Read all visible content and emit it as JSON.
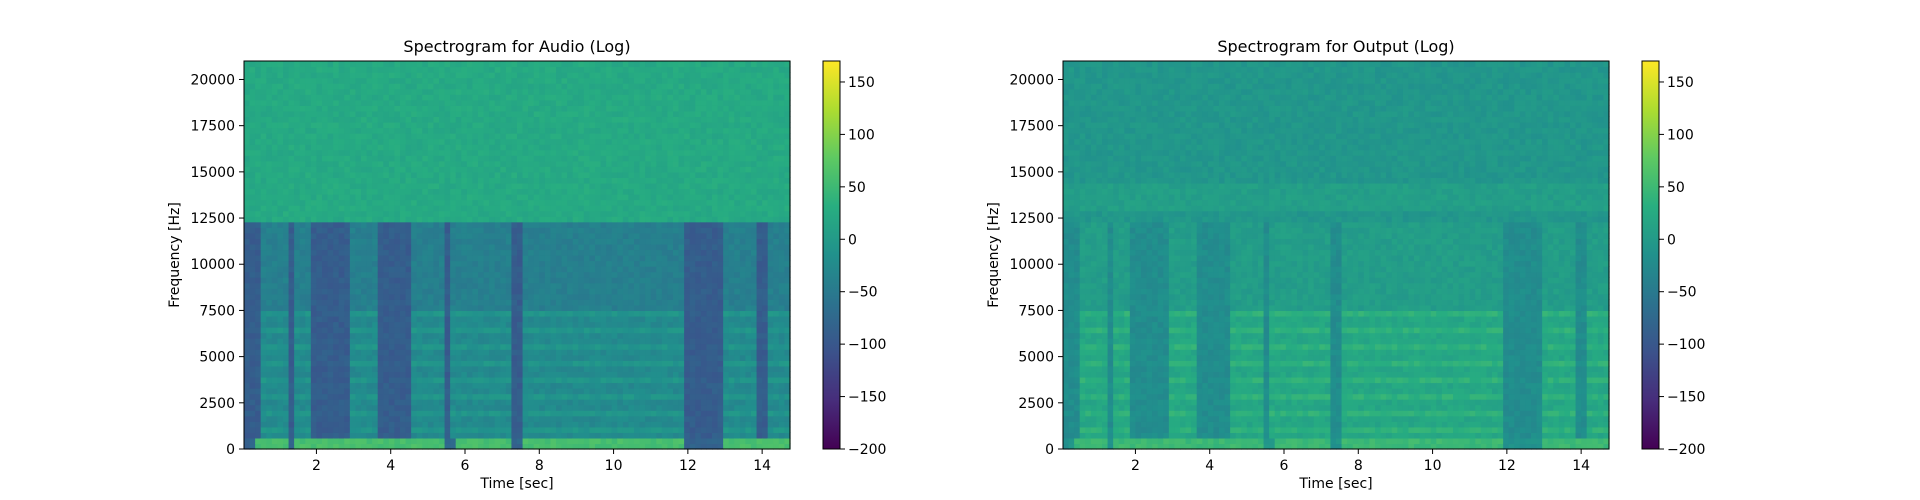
{
  "chart_data": [
    {
      "type": "heatmap",
      "title": "Spectrogram for Audio (Log)",
      "xlabel": "Time [sec]",
      "ylabel": "Frequency [Hz]",
      "xlim": [
        0.05,
        14.75
      ],
      "ylim": [
        0,
        21000
      ],
      "xticks": [
        2,
        4,
        6,
        8,
        10,
        12,
        14
      ],
      "yticks": [
        0,
        2500,
        5000,
        7500,
        10000,
        12500,
        15000,
        17500,
        20000
      ],
      "colorbar": {
        "range": [
          -200,
          170
        ],
        "ticks": [
          150,
          100,
          50,
          0,
          -50,
          -100,
          -150,
          -200
        ]
      },
      "colormap": "viridis",
      "cutoff_frequency": 12300,
      "approx_levels": {
        "above_cutoff": 25,
        "below_cutoff_quiet": -90,
        "below_cutoff_active": -40,
        "low_band": 60
      },
      "activity_intervals": [
        [
          0.5,
          1.2
        ],
        [
          1.4,
          1.8
        ],
        [
          2.9,
          3.6
        ],
        [
          4.6,
          5.5
        ],
        [
          5.6,
          7.2
        ],
        [
          7.5,
          11.9
        ],
        [
          12.9,
          13.9
        ],
        [
          14.2,
          14.7
        ]
      ],
      "quiet_intervals": [
        [
          0.05,
          0.4
        ],
        [
          1.2,
          1.4
        ],
        [
          5.4,
          5.7
        ],
        [
          7.2,
          7.5
        ],
        [
          11.9,
          12.9
        ]
      ]
    },
    {
      "type": "heatmap",
      "title": "Spectrogram for Output (Log)",
      "xlabel": "Time [sec]",
      "ylabel": "Frequency [Hz]",
      "xlim": [
        0.05,
        14.75
      ],
      "ylim": [
        0,
        21000
      ],
      "xticks": [
        2,
        4,
        6,
        8,
        10,
        12,
        14
      ],
      "yticks": [
        0,
        2500,
        5000,
        7500,
        10000,
        12500,
        15000,
        17500,
        20000
      ],
      "colorbar": {
        "range": [
          -200,
          170
        ],
        "ticks": [
          150,
          100,
          50,
          0,
          -50,
          -100,
          -150,
          -200
        ]
      },
      "colormap": "viridis",
      "cutoff_frequency": 12300,
      "approx_levels": {
        "above_cutoff": -5,
        "below_cutoff_quiet": -20,
        "below_cutoff_active": 5,
        "low_band": 50
      },
      "activity_intervals": [
        [
          0.5,
          1.2
        ],
        [
          1.4,
          1.8
        ],
        [
          2.9,
          3.6
        ],
        [
          4.6,
          5.5
        ],
        [
          5.6,
          7.2
        ],
        [
          7.5,
          11.9
        ],
        [
          12.9,
          13.9
        ],
        [
          14.2,
          14.7
        ]
      ],
      "quiet_intervals": [
        [
          0.05,
          0.4
        ],
        [
          1.2,
          1.4
        ],
        [
          5.4,
          5.7
        ],
        [
          7.2,
          7.5
        ],
        [
          11.9,
          12.9
        ]
      ]
    }
  ]
}
